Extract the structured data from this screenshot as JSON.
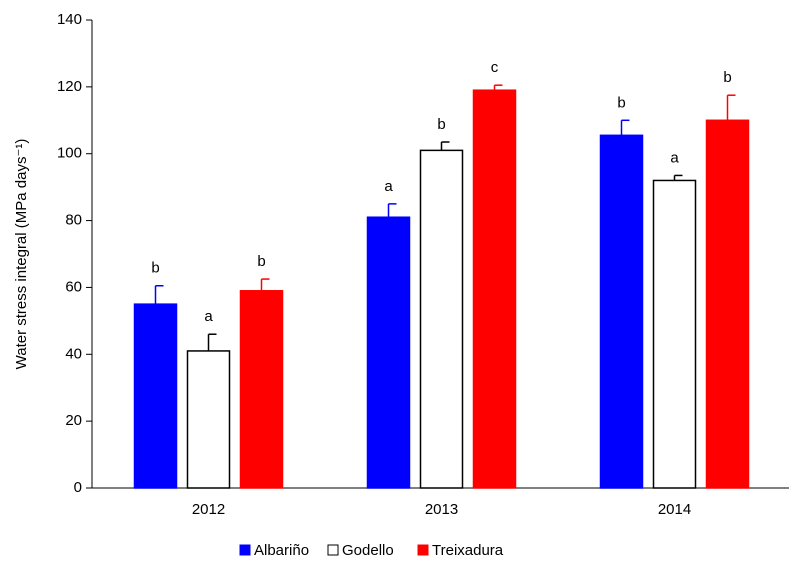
{
  "chart_data": {
    "type": "bar",
    "y_label": "Water stress integral (MPa days⁻¹)",
    "categories": [
      "2012",
      "2013",
      "2014"
    ],
    "series": [
      {
        "name": "Albariño",
        "color": "#0000ff",
        "values": [
          55,
          81,
          105.5
        ],
        "errors": [
          5.5,
          4,
          4.5
        ],
        "letters": [
          "b",
          "a",
          "b"
        ]
      },
      {
        "name": "Godello",
        "color": "#ffffff",
        "values": [
          41,
          101,
          92
        ],
        "errors": [
          5,
          2.5,
          1.5
        ],
        "letters": [
          "a",
          "b",
          "a"
        ]
      },
      {
        "name": "Treixadura",
        "color": "#ff0000",
        "values": [
          59,
          119,
          110
        ],
        "errors": [
          3.5,
          1.5,
          7.5
        ],
        "letters": [
          "b",
          "c",
          "b"
        ]
      }
    ],
    "ylim": [
      0,
      140
    ],
    "yticks": [
      0,
      20,
      40,
      60,
      80,
      100,
      120,
      140
    ]
  }
}
